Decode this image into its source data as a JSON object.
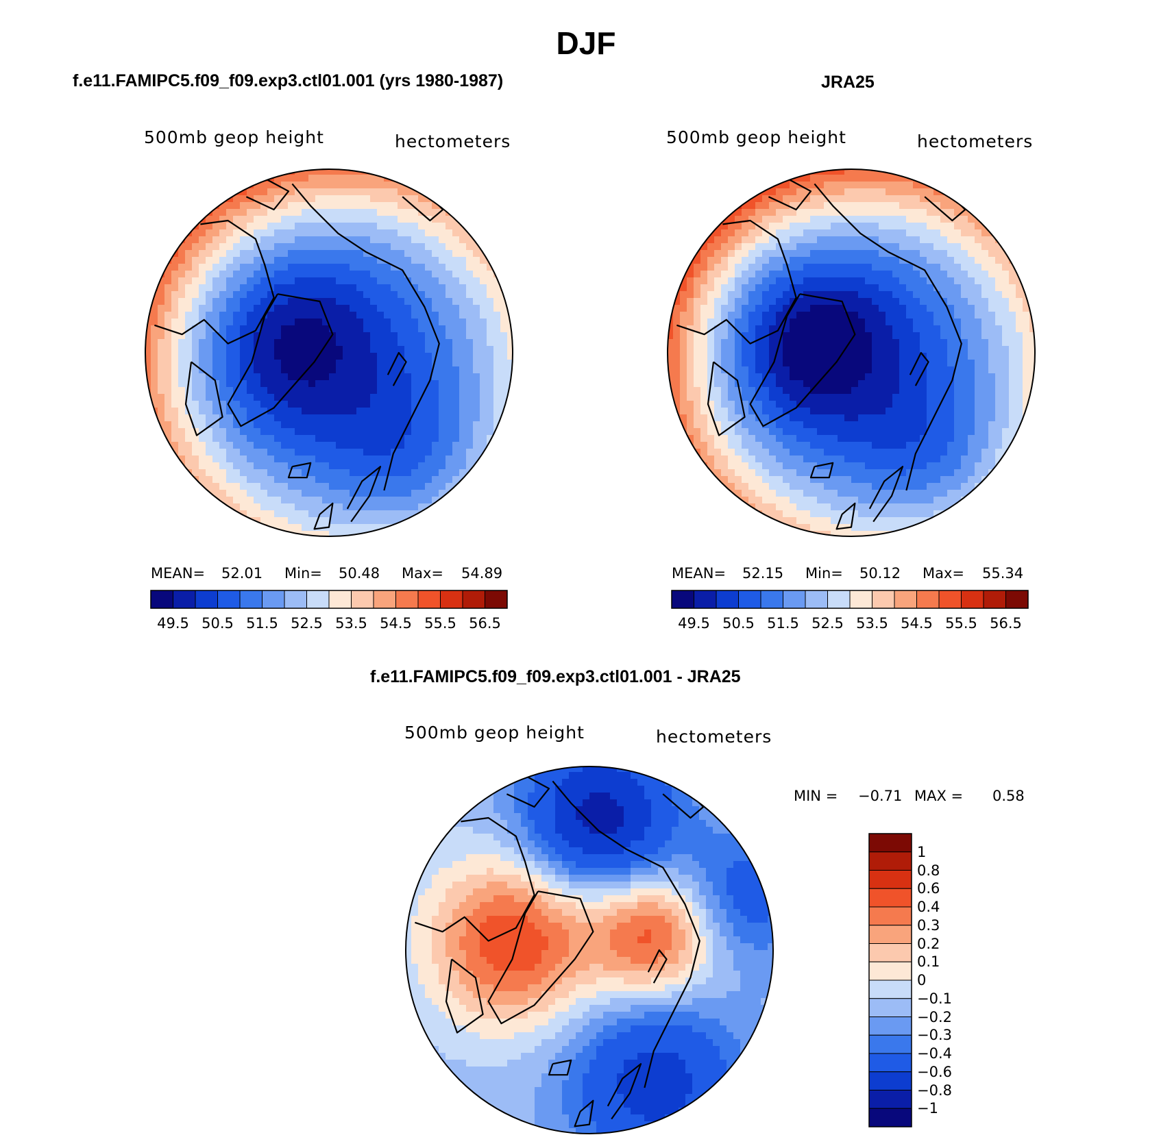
{
  "figure": {
    "title": "DJF",
    "colors": {
      "blues": [
        "#08087c",
        "#0a1ea8",
        "#0d3dd0",
        "#1f5be6",
        "#3a78ec",
        "#6a9af2",
        "#9cbcf6",
        "#c8dcf9"
      ],
      "reds": [
        "#fde8d6",
        "#fcc9ae",
        "#f9a47c",
        "#f57a4e",
        "#f0532a",
        "#d83112",
        "#b01c08",
        "#7c0a04"
      ],
      "coast": "#000000"
    }
  },
  "panels": {
    "model": {
      "header": "f.e11.FAMIPC5.f09_f09.exp3.ctl01.001 (yrs 1980-1987)",
      "variable": "500mb geop height",
      "units": "hectometers",
      "mean_label": "MEAN=",
      "mean_value": "52.01",
      "min_label": "Min=",
      "min_value": "50.48",
      "max_label": "Max=",
      "max_value": "54.89"
    },
    "obs": {
      "header": "JRA25",
      "variable": "500mb geop height",
      "units": "hectometers",
      "mean_label": "MEAN=",
      "mean_value": "52.15",
      "min_label": "Min=",
      "min_value": "50.12",
      "max_label": "Max=",
      "max_value": "55.34"
    },
    "diff": {
      "header": "f.e11.FAMIPC5.f09_f09.exp3.ctl01.001 - JRA25",
      "variable": "500mb geop height",
      "units": "hectometers",
      "min_label": "MIN =",
      "min_value": "−0.71",
      "max_label": "MAX =",
      "max_value": "0.58"
    }
  },
  "colorbars": {
    "horizontal_ticks": [
      "49.5",
      "50.5",
      "51.5",
      "52.5",
      "53.5",
      "54.5",
      "55.5",
      "56.5"
    ],
    "diff_ticks": [
      "1",
      "0.8",
      "0.6",
      "0.4",
      "0.3",
      "0.2",
      "0.1",
      "0",
      "−0.1",
      "−0.2",
      "−0.3",
      "−0.4",
      "−0.6",
      "−0.8",
      "−1"
    ]
  },
  "chart_data": [
    {
      "type": "heatmap",
      "title": "500mb geop height (model)",
      "units": "hectometers",
      "projection": "north polar stereographic",
      "contour_levels": [
        49.5,
        50,
        50.5,
        51,
        51.5,
        52,
        52.5,
        53,
        53.5,
        54,
        54.5,
        55,
        55.5,
        56,
        56.5
      ],
      "stats": {
        "mean": 52.01,
        "min": 50.48,
        "max": 54.89
      }
    },
    {
      "type": "heatmap",
      "title": "500mb geop height (JRA25)",
      "units": "hectometers",
      "projection": "north polar stereographic",
      "contour_levels": [
        49.5,
        50,
        50.5,
        51,
        51.5,
        52,
        52.5,
        53,
        53.5,
        54,
        54.5,
        55,
        55.5,
        56,
        56.5
      ],
      "stats": {
        "mean": 52.15,
        "min": 50.12,
        "max": 55.34
      }
    },
    {
      "type": "heatmap",
      "title": "500mb geop height difference (model - JRA25)",
      "units": "hectometers",
      "projection": "north polar stereographic",
      "contour_levels": [
        -1,
        -0.8,
        -0.6,
        -0.4,
        -0.3,
        -0.2,
        -0.1,
        0,
        0.1,
        0.2,
        0.3,
        0.4,
        0.6,
        0.8,
        1
      ],
      "stats": {
        "min": -0.71,
        "max": 0.58
      }
    }
  ]
}
